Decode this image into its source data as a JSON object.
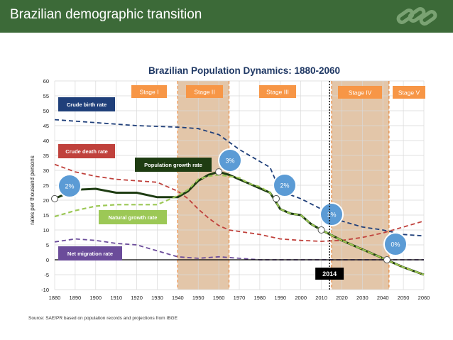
{
  "header": {
    "title": "Brazilian demographic transition",
    "logo_icon": "chain-links-icon"
  },
  "source": "Source: SAE/PR based on population records and projections from IBGE",
  "colors": {
    "header_bg": "#3c6a38",
    "birth": "#1f3f7a",
    "death": "#c0413c",
    "growth": "#1e3c12",
    "natural": "#9cc856",
    "migration": "#6b4c9a",
    "stage_label_bg": "#f79646",
    "stage_band": "#d9b38c",
    "bubble_fill": "#5b9bd5"
  },
  "chart_data": {
    "type": "line",
    "title": "Brazilian Population Dynamics: 1880-2060",
    "ylabel": "rates per thousand persons",
    "xlabel": "",
    "xlim": [
      1880,
      2060
    ],
    "ylim": [
      -10,
      60
    ],
    "x_ticks": [
      1880,
      1890,
      1900,
      1910,
      1920,
      1930,
      1940,
      1950,
      1960,
      1970,
      1980,
      1990,
      2000,
      2010,
      2020,
      2030,
      2040,
      2050,
      2060
    ],
    "y_ticks": [
      -10,
      -5,
      0,
      5,
      10,
      15,
      20,
      25,
      30,
      35,
      40,
      45,
      50,
      55,
      60
    ],
    "series": [
      {
        "name": "Crude birth rate",
        "key": "birth",
        "style": "dashed",
        "x": [
          1880,
          1900,
          1920,
          1940,
          1950,
          1960,
          1970,
          1980,
          1985,
          1990,
          2000,
          2010,
          2020,
          2030,
          2040,
          2050,
          2060
        ],
        "y": [
          47,
          46,
          45,
          44.5,
          44,
          42,
          37,
          33,
          31,
          23,
          20.5,
          17,
          13,
          11,
          10,
          8.5,
          8
        ]
      },
      {
        "name": "Crude death rate",
        "key": "death",
        "style": "dashed",
        "x": [
          1880,
          1890,
          1900,
          1910,
          1920,
          1930,
          1940,
          1945,
          1950,
          1955,
          1960,
          1965,
          1970,
          1980,
          1990,
          2000,
          2010,
          2020,
          2030,
          2040,
          2050,
          2060
        ],
        "y": [
          32,
          29.5,
          28,
          27,
          26.5,
          26,
          23,
          20.5,
          17,
          14,
          11.5,
          10,
          9.5,
          8.5,
          7,
          6.5,
          6.2,
          6.5,
          7.5,
          9,
          11,
          13
        ]
      },
      {
        "name": "Population growth rate",
        "key": "growth",
        "style": "solid",
        "x": [
          1880,
          1890,
          1900,
          1910,
          1920,
          1930,
          1940,
          1945,
          1950,
          1955,
          1960,
          1965,
          1970,
          1975,
          1980,
          1985,
          1990,
          1995,
          2000,
          2005,
          2010,
          2020,
          2030,
          2040,
          2050,
          2060
        ],
        "y": [
          20.5,
          23.5,
          23.8,
          22.5,
          22.5,
          21,
          21,
          23,
          26.5,
          28.5,
          29.5,
          28.5,
          27,
          25.5,
          24,
          22.5,
          17,
          15.5,
          15,
          12,
          10,
          6.5,
          3.5,
          0.5,
          -2.5,
          -5
        ]
      },
      {
        "name": "Natural growth  rate",
        "key": "natural",
        "style": "dashed",
        "x": [
          1880,
          1890,
          1900,
          1910,
          1920,
          1930,
          1940,
          1945,
          1950,
          1955,
          1960,
          1965,
          1970,
          1975,
          1980,
          1985,
          1990,
          1995,
          2000,
          2005,
          2010,
          2020,
          2030,
          2040,
          2050,
          2060
        ],
        "y": [
          14.5,
          16.5,
          18,
          18.5,
          18.5,
          18.5,
          21.5,
          23.5,
          27,
          28,
          28.5,
          28,
          27.5,
          25.5,
          24.5,
          22.5,
          17,
          15.5,
          15,
          12,
          10,
          6.5,
          3.5,
          0.5,
          -2.5,
          -5
        ]
      },
      {
        "name": "Net migration rate",
        "key": "migration",
        "style": "dashed",
        "x": [
          1880,
          1890,
          1900,
          1910,
          1920,
          1930,
          1940,
          1950,
          1960,
          1970,
          1980,
          1990,
          2000,
          2060
        ],
        "y": [
          6,
          7,
          6.5,
          5.5,
          5,
          3,
          1,
          0.5,
          1,
          0.5,
          0,
          0,
          0,
          0
        ]
      }
    ],
    "zero_line": 0,
    "stages": [
      {
        "label": "Stage I",
        "start": 1880,
        "end": 1940
      },
      {
        "label": "Stage II",
        "start": 1940,
        "end": 1965
      },
      {
        "label": "Stage III",
        "start": 1965,
        "end": 2015
      },
      {
        "label": "Stage IV",
        "start": 2015,
        "end": 2043
      },
      {
        "label": "Stage V",
        "start": 2043,
        "end": 2060
      }
    ],
    "current_year": {
      "label": "2014",
      "x": 2014
    },
    "bubbles": [
      {
        "label": "2%",
        "x": 1880,
        "y": 20.5
      },
      {
        "label": "3%",
        "x": 1960,
        "y": 29.5
      },
      {
        "label": "2%",
        "x": 1988,
        "y": 20.5
      },
      {
        "label": "1%",
        "x": 2010,
        "y": 10
      },
      {
        "label": "0%",
        "x": 2042,
        "y": 0
      }
    ],
    "legend": [
      {
        "text": "Crude birth rate",
        "key": "birth"
      },
      {
        "text": "Crude death rate",
        "key": "death"
      },
      {
        "text": "Population growth rate",
        "key": "growth"
      },
      {
        "text": "Natural growth  rate",
        "key": "natural"
      },
      {
        "text": "Net migration rate",
        "key": "migration"
      }
    ]
  }
}
